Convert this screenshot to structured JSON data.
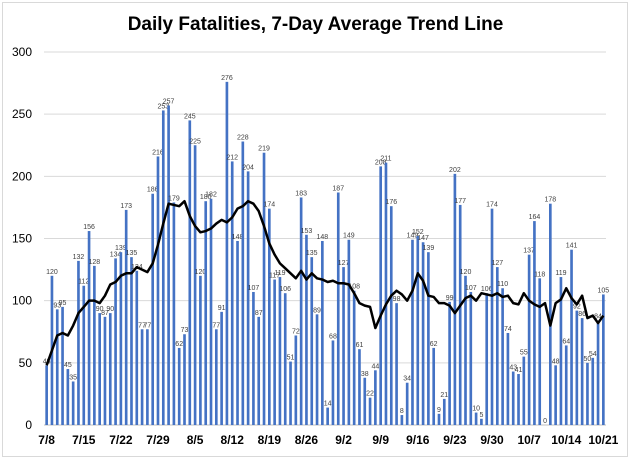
{
  "chart_data": {
    "type": "bar",
    "title": "Daily Fatalities, 7-Day Average Trend Line",
    "xlabel": "",
    "ylabel": "",
    "ylim": [
      0,
      300
    ],
    "yticks": [
      0,
      50,
      100,
      150,
      200,
      250,
      300
    ],
    "grid": true,
    "legend": "none",
    "bar_color": "#4472c4",
    "line_color": "#000000",
    "categories": [
      "7/8",
      "7/9",
      "7/10",
      "7/11",
      "7/12",
      "7/13",
      "7/14",
      "7/15",
      "7/16",
      "7/17",
      "7/18",
      "7/19",
      "7/20",
      "7/21",
      "7/22",
      "7/23",
      "7/24",
      "7/25",
      "7/26",
      "7/27",
      "7/28",
      "7/29",
      "7/30",
      "7/31",
      "8/1",
      "8/2",
      "8/3",
      "8/4",
      "8/5",
      "8/6",
      "8/7",
      "8/8",
      "8/9",
      "8/10",
      "8/11",
      "8/12",
      "8/13",
      "8/14",
      "8/15",
      "8/16",
      "8/17",
      "8/18",
      "8/19",
      "8/20",
      "8/21",
      "8/22",
      "8/23",
      "8/24",
      "8/25",
      "8/26",
      "8/27",
      "8/28",
      "8/29",
      "8/30",
      "8/31",
      "9/1",
      "9/2",
      "9/3",
      "9/4",
      "9/5",
      "9/6",
      "9/7",
      "9/8",
      "9/9",
      "9/10",
      "9/11",
      "9/12",
      "9/13",
      "9/14",
      "9/15",
      "9/16",
      "9/17",
      "9/18",
      "9/19",
      "9/20",
      "9/21",
      "9/22",
      "9/23",
      "9/24",
      "9/25",
      "9/26",
      "9/27",
      "9/28",
      "9/29",
      "9/30",
      "10/1",
      "10/2",
      "10/3",
      "10/4",
      "10/5",
      "10/6",
      "10/7",
      "10/8",
      "10/9",
      "10/10",
      "10/11",
      "10/12",
      "10/13",
      "10/14",
      "10/15",
      "10/16",
      "10/17",
      "10/18",
      "10/19",
      "10/20",
      "10/21"
    ],
    "x_tick_labels": [
      "7/8",
      "7/15",
      "7/22",
      "7/29",
      "8/5",
      "8/12",
      "8/19",
      "8/26",
      "9/2",
      "9/9",
      "9/16",
      "9/23",
      "9/30",
      "10/7",
      "10/14",
      "10/21"
    ],
    "series": [
      {
        "type": "bar",
        "values": [
          48,
          120,
          93,
          95,
          45,
          35,
          132,
          112,
          156,
          128,
          90,
          87,
          90,
          134,
          139,
          173,
          135,
          124,
          77,
          77,
          186,
          216,
          253,
          257,
          179,
          62,
          73,
          245,
          225,
          120,
          180,
          182,
          77,
          91,
          276,
          212,
          148,
          228,
          204,
          107,
          87,
          219,
          174,
          117,
          119,
          106,
          51,
          72,
          183,
          153,
          135,
          89,
          148,
          14,
          68,
          187,
          127,
          149,
          108,
          61,
          38,
          22,
          44,
          208,
          211,
          176,
          98,
          8,
          34,
          149,
          152,
          147,
          139,
          62,
          9,
          21,
          99,
          202,
          177,
          120,
          107,
          10,
          5,
          106,
          174,
          127,
          110,
          74,
          43,
          41,
          55,
          137,
          164,
          118,
          0,
          178,
          48,
          119,
          64,
          141,
          92,
          86,
          50,
          54,
          84,
          105
        ],
        "labels": [
          "48",
          "120",
          "93",
          "95",
          "45",
          "35",
          "132",
          "112",
          "156",
          "128",
          "90",
          "87",
          "90",
          "134",
          "139",
          "173",
          "135",
          "124",
          "77",
          "77",
          "186",
          "216",
          "253",
          "257",
          "179",
          "62",
          "73",
          "245",
          "225",
          "120",
          "180",
          "182",
          "77",
          "91",
          "276",
          "212",
          "148",
          "228",
          "204",
          "107",
          "87",
          "219",
          "174",
          "117",
          "119",
          "106",
          "51",
          "72",
          "183",
          "153",
          "135",
          "89",
          "148",
          "14",
          "68",
          "187",
          "127",
          "149",
          "108",
          "61",
          "38",
          "22",
          "44",
          "208",
          "211",
          "176",
          "98",
          "8",
          "34",
          "149",
          "152",
          "147",
          "139",
          "62",
          "9",
          "21",
          "99",
          "202",
          "177",
          "120",
          "107",
          "10",
          "5",
          "106",
          "174",
          "127",
          "110",
          "74",
          "43",
          "41",
          "55",
          "137",
          "164",
          "118",
          "0",
          "178",
          "48",
          "119",
          "64",
          "141",
          "92",
          "86",
          "50",
          "54",
          "84",
          "105"
        ]
      },
      {
        "type": "line",
        "values": [
          48,
          60,
          72,
          74,
          72,
          80,
          90,
          95,
          100,
          100,
          98,
          104,
          113,
          115,
          120,
          122,
          122,
          127,
          125,
          123,
          130,
          145,
          162,
          178,
          177,
          176,
          180,
          168,
          160,
          155,
          156,
          158,
          162,
          165,
          163,
          167,
          174,
          176,
          180,
          178,
          172,
          160,
          146,
          137,
          130,
          126,
          122,
          118,
          124,
          117,
          122,
          118,
          117,
          115,
          116,
          114,
          114,
          113,
          106,
          98,
          96,
          95,
          78,
          88,
          97,
          104,
          108,
          105,
          100,
          108,
          122,
          116,
          104,
          103,
          98,
          98,
          96,
          90,
          96,
          102,
          104,
          100,
          106,
          105,
          104,
          106,
          103,
          104,
          98,
          97,
          106,
          100,
          97,
          95,
          98,
          80,
          98,
          101,
          110,
          102,
          97,
          104,
          86,
          88,
          82,
          88
        ]
      }
    ]
  }
}
